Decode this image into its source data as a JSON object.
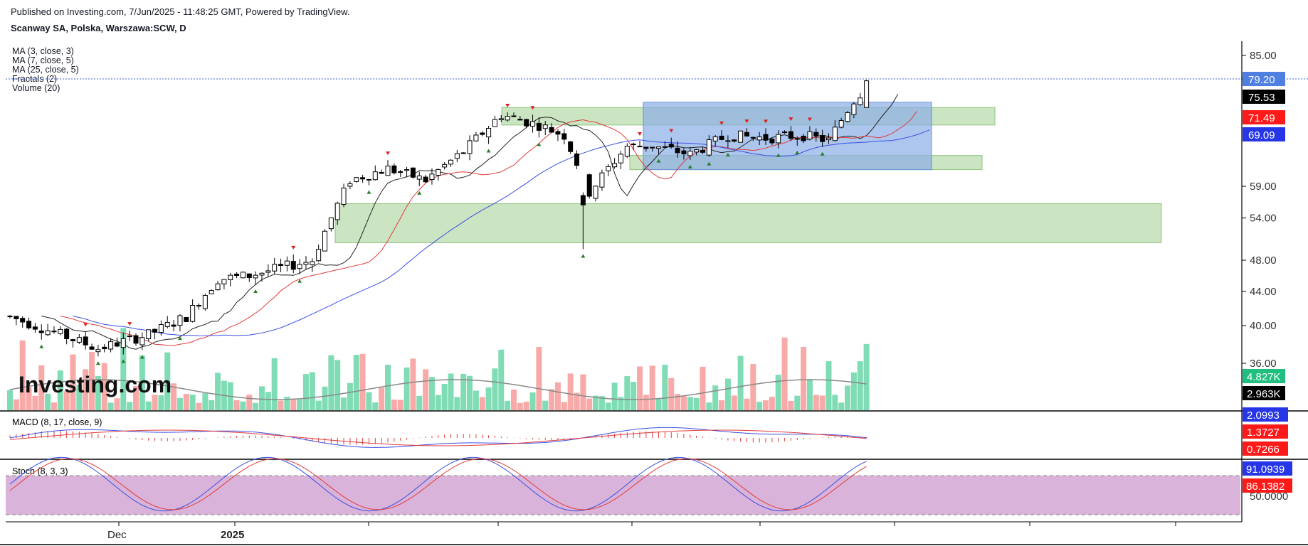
{
  "header": {
    "published": "Published on Investing.com, 7/Jun/2025 - 11:48:25 GMT, Powered by TradingView.",
    "symbol": "Scanway SA, Polska, Warszawa:SCW, D"
  },
  "indicators": [
    "MA (3, close, 3)",
    "MA (7, close, 5)",
    "MA (25, close, 5)",
    "Fractals (2)",
    "Volume (20)"
  ],
  "watermark": "Investing.com",
  "colors": {
    "up_volume": "#7fdcb4",
    "down_volume": "#f7aaa8",
    "zone_green": "#a8d39a",
    "zone_blue": "#8aaee6",
    "ma_fast": "#222222",
    "ma_mid": "#e33b3b",
    "ma_slow": "#3b4fe3",
    "stoch_band": "#cc99cc",
    "fractal_up": "#e02020",
    "fractal_down": "#2a7d2a"
  },
  "chart_data": [
    {
      "type": "candlestick",
      "title": "Scanway SA, Polska, Warszawa:SCW, D",
      "y_scale": "log",
      "y_ticks": [
        "85.00",
        "79.20",
        "75.53",
        "71.49",
        "69.09",
        "59.00",
        "54.00",
        "48.00",
        "44.00",
        "40.00",
        "36.00"
      ],
      "x_labels": [
        "Dec",
        "2025"
      ],
      "price_labels": [
        {
          "value": "79.20",
          "role": "last",
          "color": "#4f7fe0"
        },
        {
          "value": "75.53",
          "role": "ma_fast",
          "color": "#000000"
        },
        {
          "value": "71.49",
          "role": "ma_mid",
          "color": "#ff1a1a"
        },
        {
          "value": "69.09",
          "role": "ma_slow",
          "color": "#2636e6"
        }
      ],
      "volume_labels": [
        {
          "value": "4.827K",
          "color": "#1fbf7f"
        },
        {
          "value": "2.963K",
          "color": "#000000"
        }
      ],
      "grid": false,
      "zones": [
        {
          "color": "green",
          "y_low": 70.0,
          "y_high": 73.5
        },
        {
          "color": "green",
          "y_low": 61.8,
          "y_high": 64.3
        },
        {
          "color": "green",
          "y_low": 50.4,
          "y_high": 56.2
        },
        {
          "color": "blue",
          "y_low": 61.8,
          "y_high": 74.6
        }
      ]
    },
    {
      "type": "line",
      "title": "MACD (8, 17, close, 9)",
      "value_labels": [
        {
          "value": "2.0993",
          "color": "#2636e6"
        },
        {
          "value": "1.3727",
          "color": "#ff1a1a"
        },
        {
          "value": "0.7266",
          "color": "#ff1a1a"
        }
      ]
    },
    {
      "type": "line",
      "title": "Stoch (8, 3, 3)",
      "y_ticks": [
        "50.0000"
      ],
      "band": [
        20,
        80
      ],
      "value_labels": [
        {
          "value": "91.0939",
          "color": "#2636e6"
        },
        {
          "value": "86.1382",
          "color": "#ff1a1a"
        }
      ]
    }
  ]
}
